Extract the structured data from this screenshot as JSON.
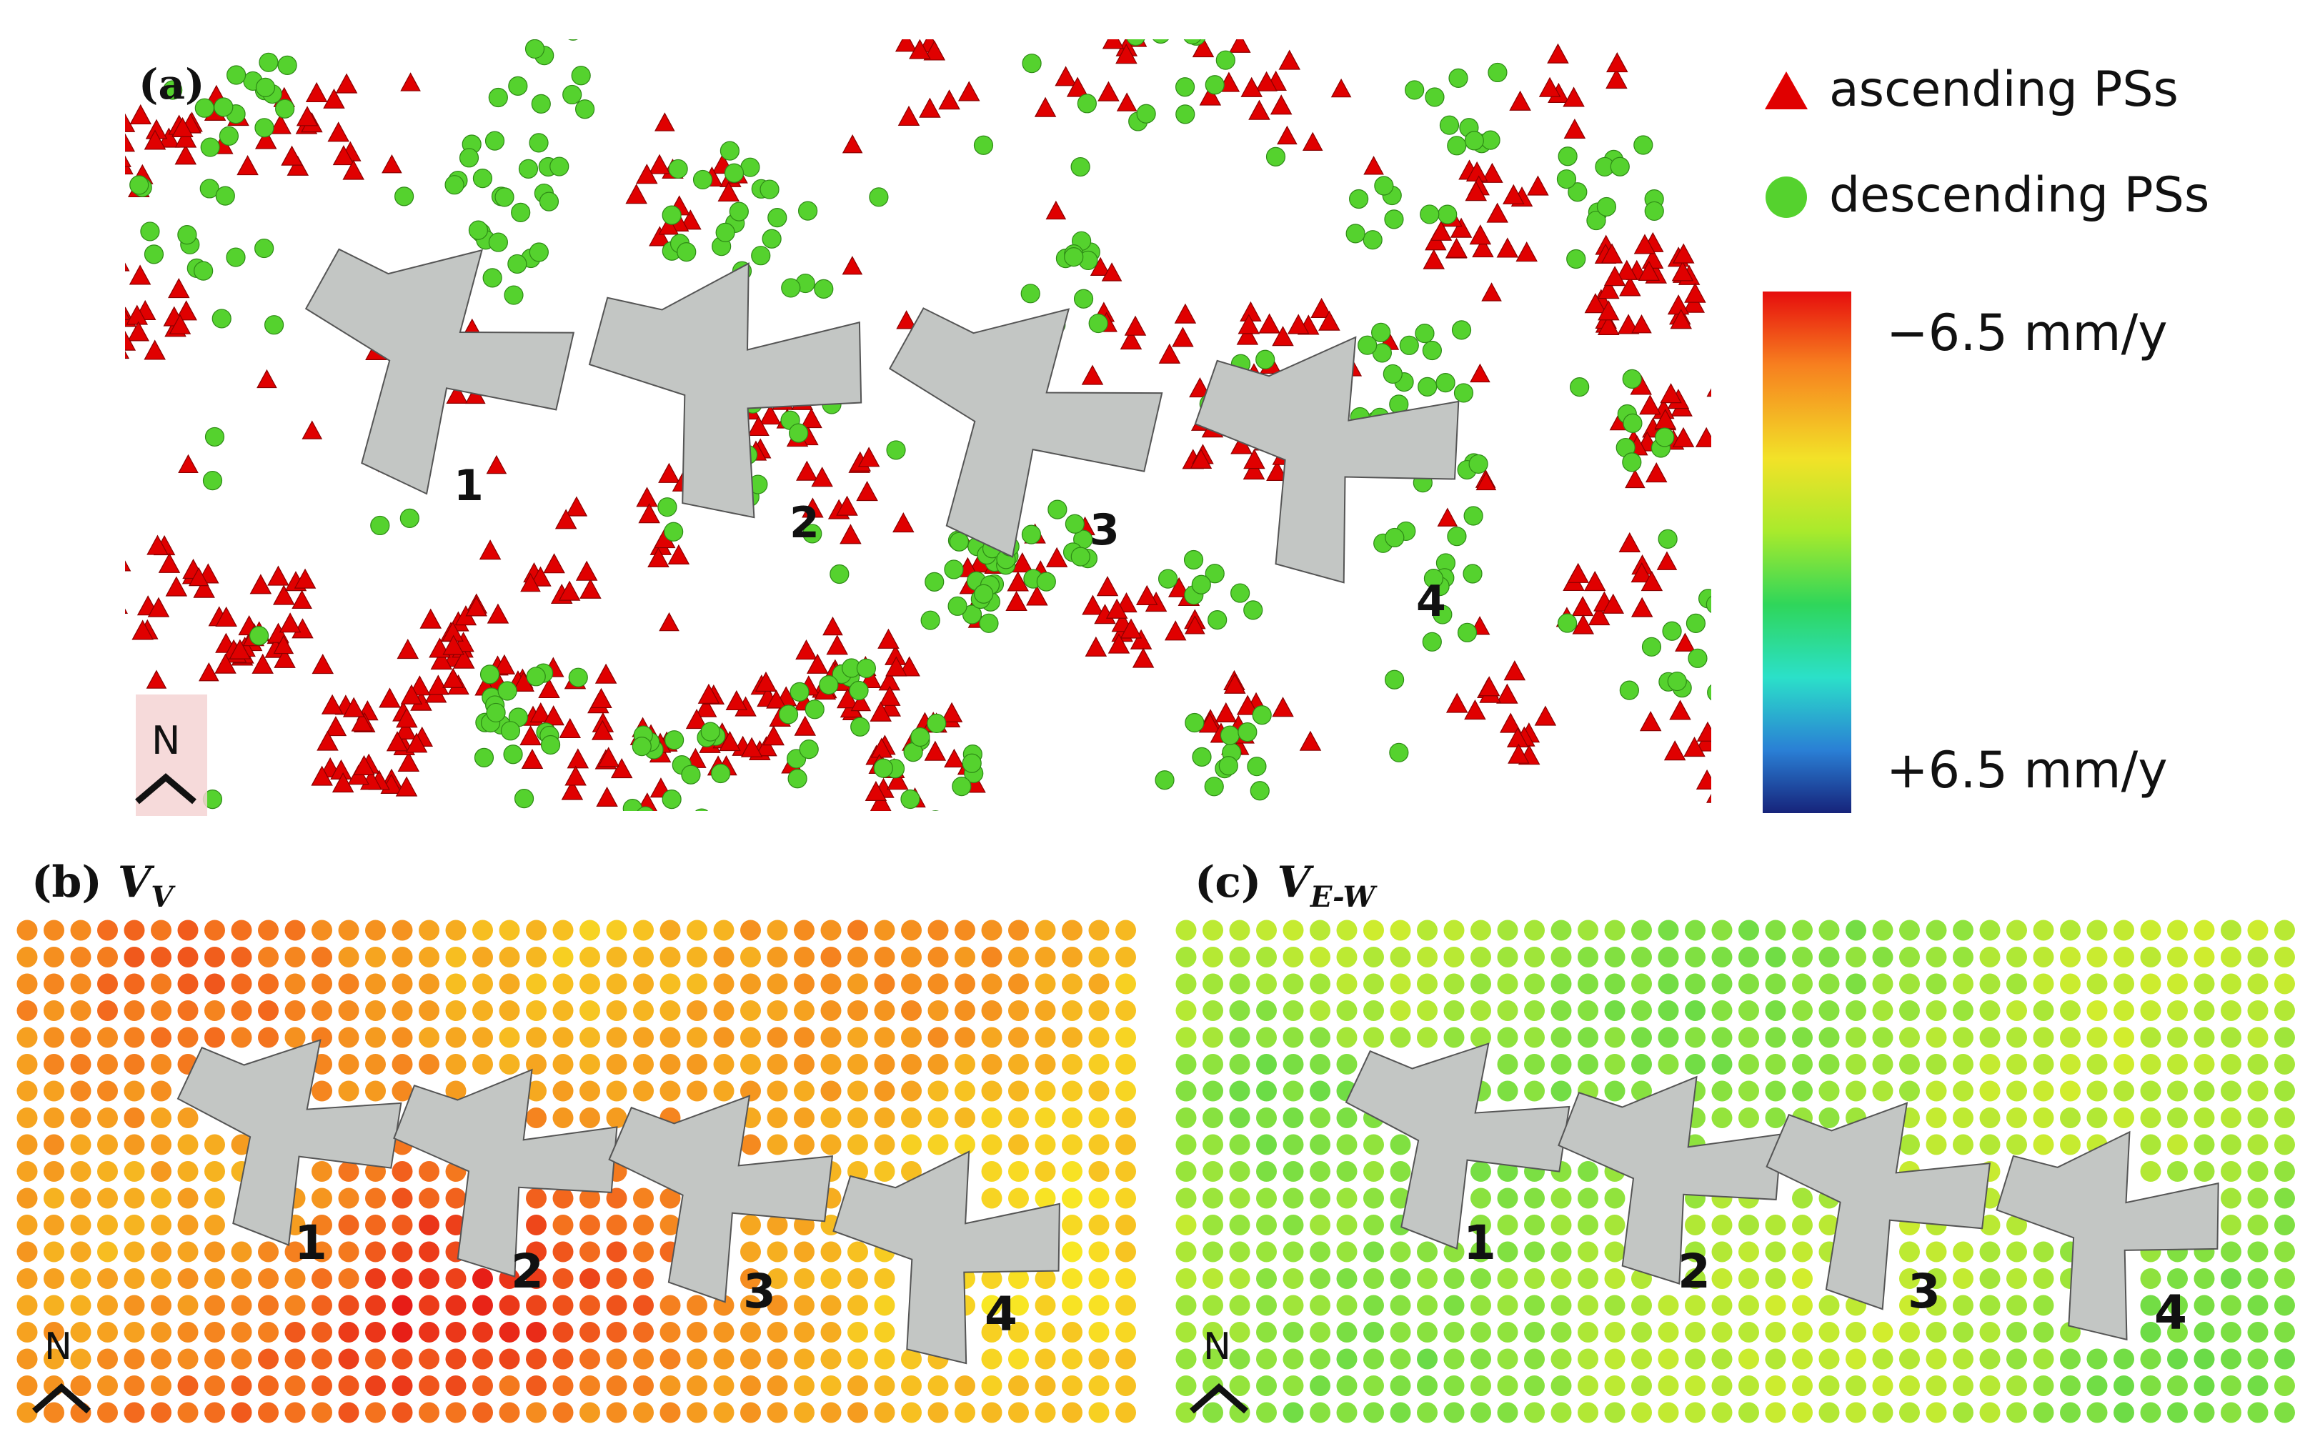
{
  "panels": {
    "a": {
      "label": "(a)"
    },
    "b": {
      "label": "(b)",
      "symbol": "V",
      "subscript": "V"
    },
    "c": {
      "label": "(c)",
      "symbol": "V",
      "subscript": "E-W"
    }
  },
  "legend": {
    "ascending": "ascending PSs",
    "descending": "descending PSs",
    "scale_top": "−6.5 mm/y",
    "scale_bottom": "+6.5 mm/y",
    "range_mm_per_year": [
      -6.5,
      6.5
    ]
  },
  "colors": {
    "ascending": "#e00000",
    "descending": "#55d22e",
    "building": "#c3c6c4",
    "scale_stops": [
      "#e60d0d",
      "#f77f1f",
      "#f2e228",
      "#a9ea2c",
      "#2fd65a",
      "#2be0c9",
      "#2a7fd5",
      "#16237a"
    ]
  },
  "north_label": "N",
  "buildings": [
    "1",
    "2",
    "3",
    "4"
  ]
}
